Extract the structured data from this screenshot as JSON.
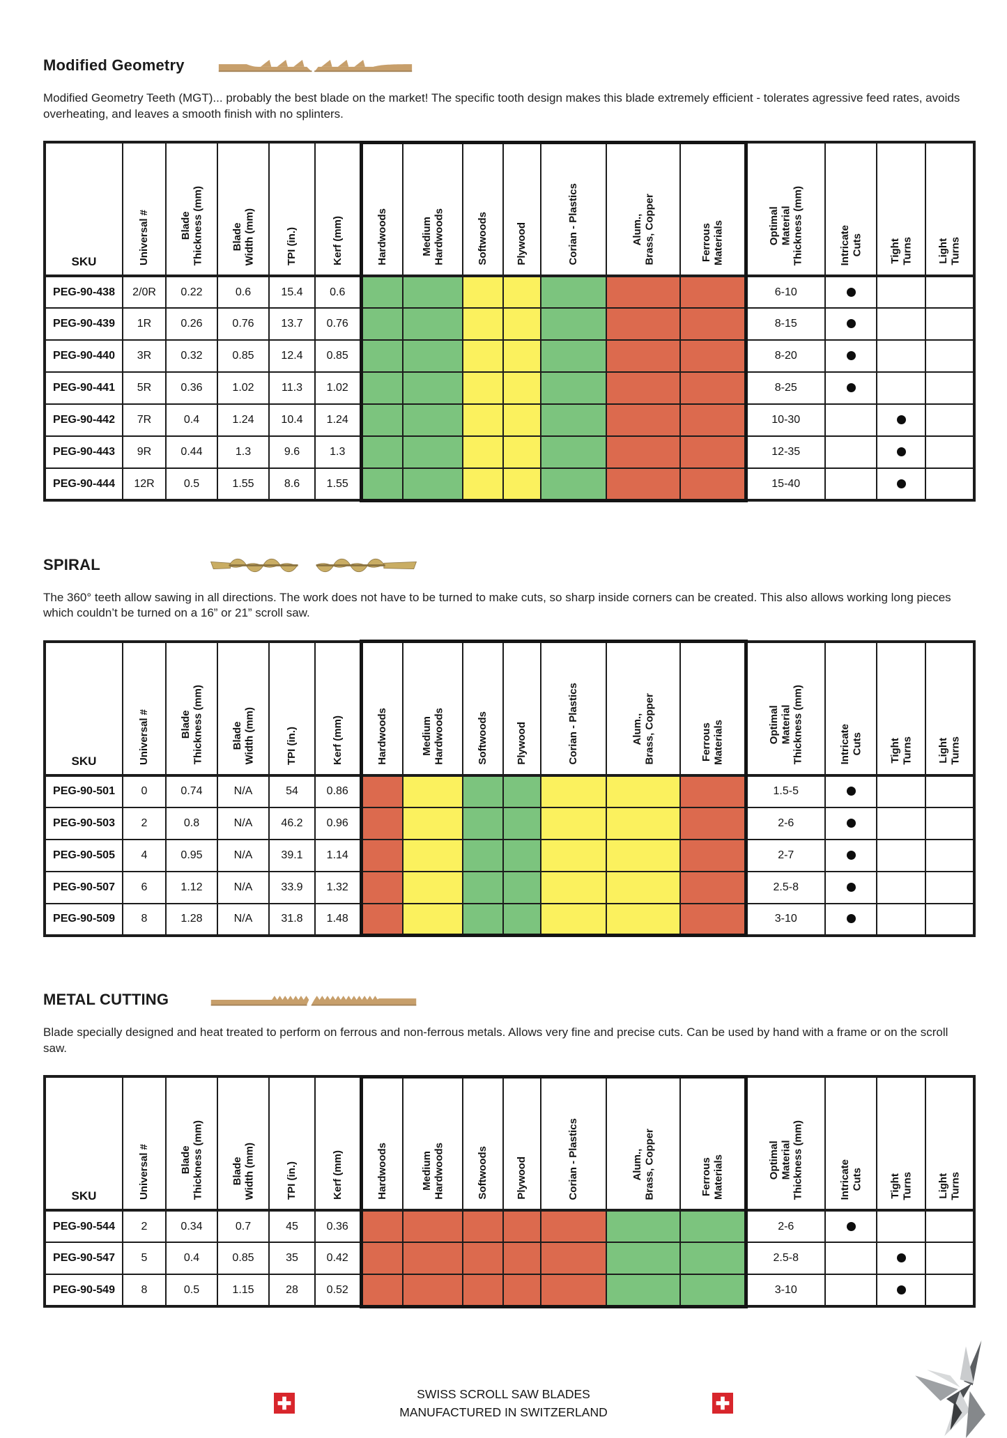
{
  "columns": {
    "sku": "SKU",
    "specs": [
      "Universal #",
      "Blade\nThickness (mm)",
      "Blade\nWidth (mm)",
      "TPI (in.)",
      "Kerf (mm)"
    ],
    "materials": [
      "Hardwoods",
      "Medium\nHardwoods",
      "Softwoods",
      "Plywood",
      "Corian  - Plastics",
      "Alum.,\nBrass, Copper",
      "Ferrous\nMaterials"
    ],
    "optimal": "Optimal\nMaterial\nThickness (mm)",
    "features": [
      "Intricate\nCuts",
      "Tight\nTurns",
      "Light\nTurns"
    ]
  },
  "colors": {
    "green": "#7cc47e",
    "yellow": "#fbf15e",
    "red": "#dc6a4e"
  },
  "sections": [
    {
      "title": "Modified Geometry",
      "blade_icon": "mgt-blade",
      "intro": "Modified Geometry Teeth (MGT)... probably the best blade on the market! The specific tooth design makes this blade extremely efficient - tolerates agressive feed rates, avoids overheating, and leaves a smooth finish with no splinters.",
      "ratings": [
        "green",
        "green",
        "yellow",
        "yellow",
        "green",
        "red",
        "red"
      ],
      "rows": [
        {
          "sku": "PEG-90-438",
          "universal": "2/0R",
          "thickness": "0.22",
          "width": "0.6",
          "tpi": "15.4",
          "kerf": "0.6",
          "optimal": "6-10",
          "feature": "intricate"
        },
        {
          "sku": "PEG-90-439",
          "universal": "1R",
          "thickness": "0.26",
          "width": "0.76",
          "tpi": "13.7",
          "kerf": "0.76",
          "optimal": "8-15",
          "feature": "intricate"
        },
        {
          "sku": "PEG-90-440",
          "universal": "3R",
          "thickness": "0.32",
          "width": "0.85",
          "tpi": "12.4",
          "kerf": "0.85",
          "optimal": "8-20",
          "feature": "intricate"
        },
        {
          "sku": "PEG-90-441",
          "universal": "5R",
          "thickness": "0.36",
          "width": "1.02",
          "tpi": "11.3",
          "kerf": "1.02",
          "optimal": "8-25",
          "feature": "intricate"
        },
        {
          "sku": "PEG-90-442",
          "universal": "7R",
          "thickness": "0.4",
          "width": "1.24",
          "tpi": "10.4",
          "kerf": "1.24",
          "optimal": "10-30",
          "feature": "tight"
        },
        {
          "sku": "PEG-90-443",
          "universal": "9R",
          "thickness": "0.44",
          "width": "1.3",
          "tpi": "9.6",
          "kerf": "1.3",
          "optimal": "12-35",
          "feature": "tight"
        },
        {
          "sku": "PEG-90-444",
          "universal": "12R",
          "thickness": "0.5",
          "width": "1.55",
          "tpi": "8.6",
          "kerf": "1.55",
          "optimal": "15-40",
          "feature": "tight"
        }
      ]
    },
    {
      "title": "SPIRAL",
      "blade_icon": "spiral-blade",
      "intro": "The 360° teeth allow sawing in all directions. The work does not have to be turned to make cuts, so sharp inside corners can be created. This also allows working long pieces which couldn’t be turned on a 16” or 21” scroll saw.",
      "ratings": [
        "red",
        "yellow",
        "green",
        "green",
        "yellow",
        "yellow",
        "red"
      ],
      "rows": [
        {
          "sku": "PEG-90-501",
          "universal": "0",
          "thickness": "0.74",
          "width": "N/A",
          "tpi": "54",
          "kerf": "0.86",
          "optimal": "1.5-5",
          "feature": "intricate"
        },
        {
          "sku": "PEG-90-503",
          "universal": "2",
          "thickness": "0.8",
          "width": "N/A",
          "tpi": "46.2",
          "kerf": "0.96",
          "optimal": "2-6",
          "feature": "intricate"
        },
        {
          "sku": "PEG-90-505",
          "universal": "4",
          "thickness": "0.95",
          "width": "N/A",
          "tpi": "39.1",
          "kerf": "1.14",
          "optimal": "2-7",
          "feature": "intricate"
        },
        {
          "sku": "PEG-90-507",
          "universal": "6",
          "thickness": "1.12",
          "width": "N/A",
          "tpi": "33.9",
          "kerf": "1.32",
          "optimal": "2.5-8",
          "feature": "intricate"
        },
        {
          "sku": "PEG-90-509",
          "universal": "8",
          "thickness": "1.28",
          "width": "N/A",
          "tpi": "31.8",
          "kerf": "1.48",
          "optimal": "3-10",
          "feature": "intricate"
        }
      ]
    },
    {
      "title": "METAL CUTTING",
      "blade_icon": "metal-blade",
      "intro": "Blade specially designed and heat treated to perform on ferrous and non-ferrous metals. Allows very fine and precise cuts. Can be used by hand with a frame or on the scroll saw.",
      "ratings": [
        "red",
        "red",
        "red",
        "red",
        "red",
        "green",
        "green"
      ],
      "rows": [
        {
          "sku": "PEG-90-544",
          "universal": "2",
          "thickness": "0.34",
          "width": "0.7",
          "tpi": "45",
          "kerf": "0.36",
          "optimal": "2-6",
          "feature": "intricate"
        },
        {
          "sku": "PEG-90-547",
          "universal": "5",
          "thickness": "0.4",
          "width": "0.85",
          "tpi": "35",
          "kerf": "0.42",
          "optimal": "2.5-8",
          "feature": "tight"
        },
        {
          "sku": "PEG-90-549",
          "universal": "8",
          "thickness": "0.5",
          "width": "1.15",
          "tpi": "28",
          "kerf": "0.52",
          "optimal": "3-10",
          "feature": "tight"
        }
      ]
    }
  ],
  "footer": {
    "line1": "SWISS SCROLL SAW BLADES",
    "line2": "MANUFACTURED IN SWITZERLAND"
  }
}
